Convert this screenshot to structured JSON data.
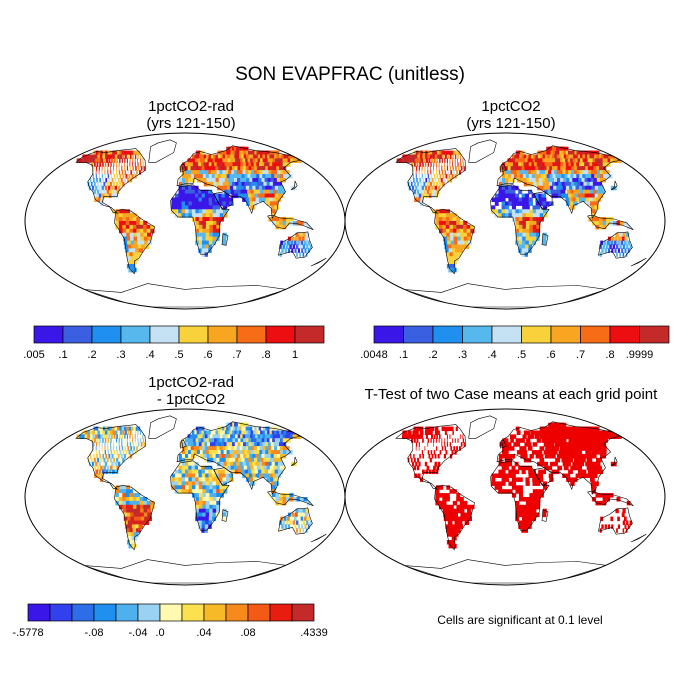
{
  "title": "SON EVAPFRAC (unitless)",
  "panels": [
    {
      "id": "tl",
      "title_lines": [
        "1pctCO2-rad",
        "(yrs 121-150)"
      ],
      "type": "field",
      "palette": "abs"
    },
    {
      "id": "tr",
      "title_lines": [
        "1pctCO2",
        "(yrs 121-150)"
      ],
      "type": "field",
      "palette": "abs2"
    },
    {
      "id": "bl",
      "title_lines": [
        "1pctCO2-rad",
        "- 1pctCO2"
      ],
      "type": "diff",
      "palette": "diff"
    },
    {
      "id": "br",
      "title_lines": [
        "T-Test of two Case means at each grid point"
      ],
      "type": "ttest"
    }
  ],
  "colorbars": {
    "top_left": {
      "colors": [
        "#3a16e8",
        "#3a5fe0",
        "#1f8ff0",
        "#56b8ec",
        "#c4e2f4",
        "#f7d23a",
        "#f8a521",
        "#f66c17",
        "#ec0e10",
        "#c42a2a"
      ],
      "labels": [
        ".005",
        ".1",
        ".2",
        ".3",
        ".4",
        ".5",
        ".6",
        ".7",
        ".8",
        "1"
      ]
    },
    "top_right": {
      "colors": [
        "#3a16e8",
        "#3a5fe0",
        "#1f8ff0",
        "#56b8ec",
        "#c4e2f4",
        "#f7d23a",
        "#f8a521",
        "#f66c17",
        "#ec0e10",
        "#c42a2a"
      ],
      "labels": [
        ".0048",
        ".1",
        ".2",
        ".3",
        ".4",
        ".5",
        ".6",
        ".7",
        ".8",
        ".9999"
      ]
    },
    "bottom_left": {
      "colors": [
        "#3a16e8",
        "#3340ec",
        "#2d6de7",
        "#1f90f0",
        "#4fb0ee",
        "#9ad2f2",
        "#fffab0",
        "#fbe04f",
        "#f8b929",
        "#f78a1c",
        "#f35a16",
        "#e81d10",
        "#c42a2a"
      ],
      "labels": [
        "-.5778",
        "-.08",
        "-.04",
        ".0",
        ".04",
        ".08",
        ".4339"
      ]
    }
  },
  "note": "Cells are significant at 0.1 level"
}
